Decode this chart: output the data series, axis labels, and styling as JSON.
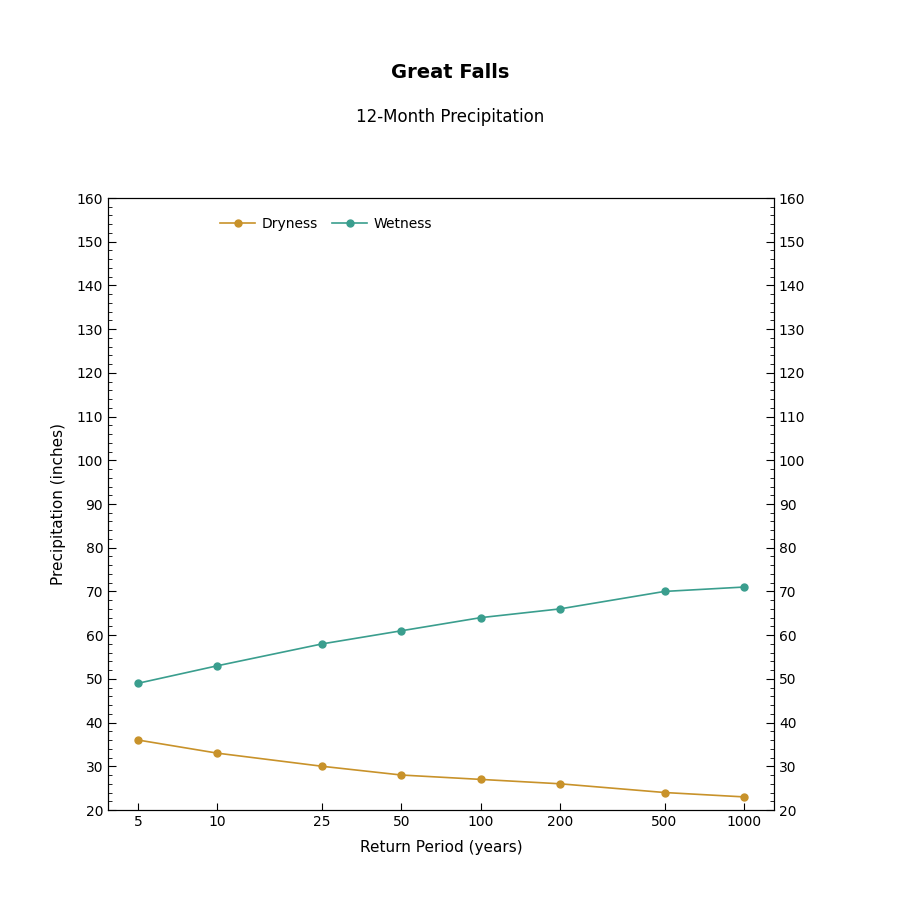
{
  "title": "Great Falls",
  "subtitle": "12-Month Precipitation",
  "xlabel": "Return Period (years)",
  "ylabel": "Precipitation (inches)",
  "x_values": [
    5,
    10,
    25,
    50,
    100,
    200,
    500,
    1000
  ],
  "wetness_values": [
    49,
    53,
    58,
    61,
    64,
    66,
    70,
    71
  ],
  "dryness_values": [
    36,
    33,
    30,
    28,
    27,
    26,
    24,
    23
  ],
  "wetness_color": "#3a9e8e",
  "dryness_color": "#c8922a",
  "wetness_label": "Wetness",
  "dryness_label": "Dryness",
  "ylim": [
    20,
    160
  ],
  "yticks": [
    20,
    30,
    40,
    50,
    60,
    70,
    80,
    90,
    100,
    110,
    120,
    130,
    140,
    150,
    160
  ],
  "background_color": "#ffffff",
  "title_fontsize": 14,
  "subtitle_fontsize": 12,
  "axis_label_fontsize": 11,
  "tick_label_fontsize": 10
}
